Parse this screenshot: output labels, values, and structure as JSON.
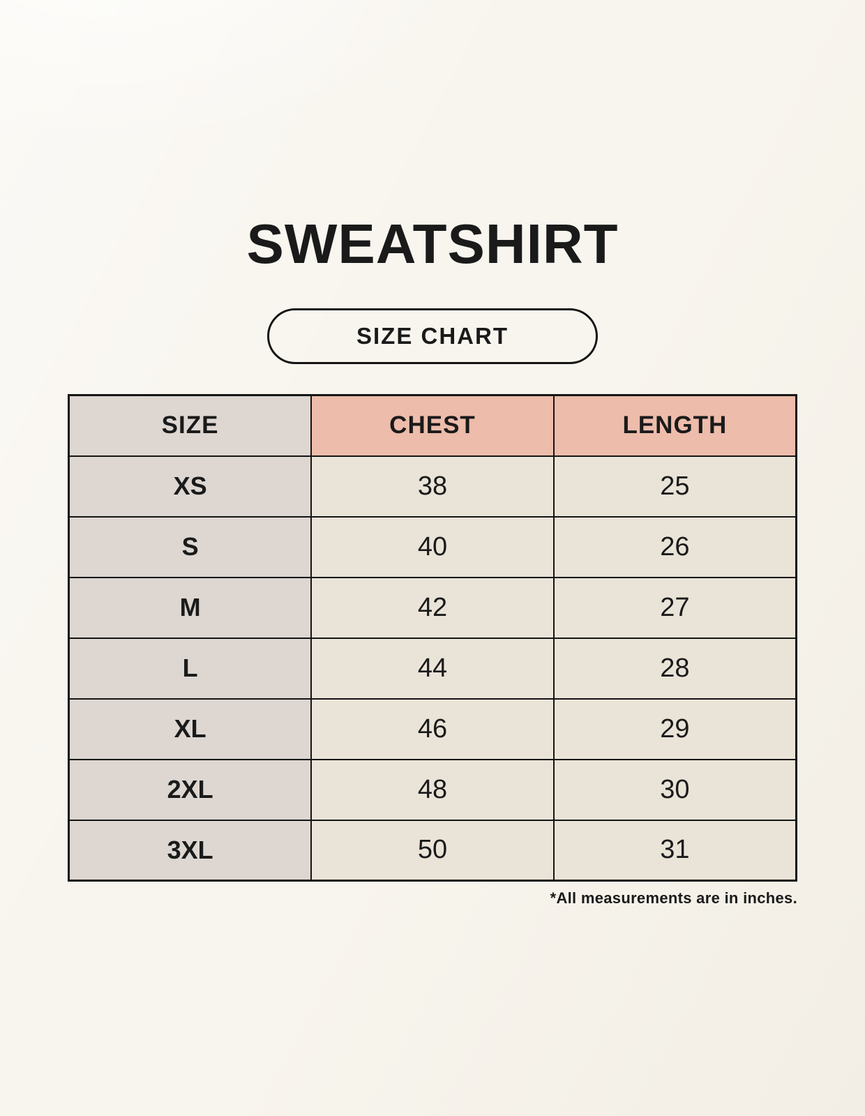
{
  "header": {
    "title": "SWEATSHIRT",
    "badge_label": "SIZE CHART"
  },
  "table": {
    "columns": [
      "SIZE",
      "CHEST",
      "LENGTH"
    ],
    "rows": [
      {
        "size": "XS",
        "chest": "38",
        "length": "25"
      },
      {
        "size": "S",
        "chest": "40",
        "length": "26"
      },
      {
        "size": "M",
        "chest": "42",
        "length": "27"
      },
      {
        "size": "L",
        "chest": "44",
        "length": "28"
      },
      {
        "size": "XL",
        "chest": "46",
        "length": "29"
      },
      {
        "size": "2XL",
        "chest": "48",
        "length": "30"
      },
      {
        "size": "3XL",
        "chest": "50",
        "length": "31"
      }
    ]
  },
  "footnote": "*All measurements are in inches.",
  "colors": {
    "background": "#f8f5ee",
    "header_pink": "#edbcab",
    "column_gray": "#ddd6d1",
    "cell_cream": "#eae3d8",
    "border_black": "#141414",
    "text_black": "#1a1a1a"
  }
}
